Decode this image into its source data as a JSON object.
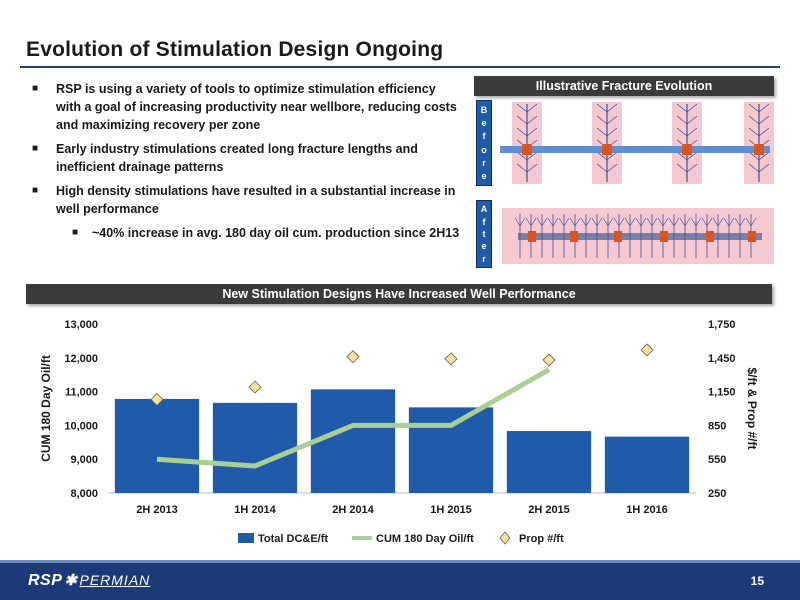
{
  "title": "Evolution of Stimulation Design Ongoing",
  "bullets": [
    "RSP is using a variety of tools to optimize stimulation efficiency with a goal of increasing productivity near wellbore, reducing costs and maximizing recovery per zone",
    "Early industry stimulations created long fracture lengths and inefficient drainage patterns",
    "High density stimulations have resulted in a substantial increase in well performance"
  ],
  "sub_bullet": "~40% increase in avg. 180 day oil cum. production since 2H13",
  "bullet_marker": "■",
  "fracture_banner": "Illustrative Fracture Evolution",
  "before_label": [
    "B",
    "e",
    "f",
    "o",
    "r",
    "e"
  ],
  "after_label": [
    "A",
    "f",
    "t",
    "e",
    "r"
  ],
  "chart_banner": "New Stimulation Designs Have Increased Well Performance",
  "footer": {
    "logo_rsp": "RSP",
    "logo_permian": "PERMIAN",
    "page": "15"
  },
  "colors": {
    "bar": "#1f5ba8",
    "line": "#a9cf94",
    "marker": "#f2e3a0",
    "footer": "#1c3a78",
    "frac_bg": "#f6c9d0",
    "frac_line": "#3c4f9a"
  },
  "chart_data": {
    "type": "bar",
    "categories": [
      "2H 2013",
      "1H 2014",
      "2H 2014",
      "1H 2015",
      "2H 2015",
      "1H 2016"
    ],
    "series": [
      {
        "name": "Total DC&E/ft",
        "type": "bar",
        "axis": "right",
        "values": [
          1085,
          1050,
          1170,
          1010,
          800,
          750
        ]
      },
      {
        "name": "CUM 180 Day Oil/ft",
        "type": "line",
        "axis": "left",
        "values": [
          9000,
          8800,
          10000,
          10000,
          11650,
          null
        ]
      },
      {
        "name": "Prop #/ft",
        "type": "scatter",
        "axis": "right",
        "values": [
          1080,
          1190,
          1460,
          1440,
          1430,
          1520
        ]
      }
    ],
    "ylabel": "CUM 180 Day Oil/ft",
    "ylabel_right": "$/ft & Prop #/ft",
    "ylim": [
      8000,
      13000
    ],
    "yticks": [
      "8,000",
      "9,000",
      "10,000",
      "11,000",
      "12,000",
      "13,000"
    ],
    "ylim_right": [
      250,
      1750
    ],
    "yticks_right": [
      "250",
      "550",
      "850",
      "1,150",
      "1,450",
      "1,750"
    ],
    "legend": "bottom"
  }
}
